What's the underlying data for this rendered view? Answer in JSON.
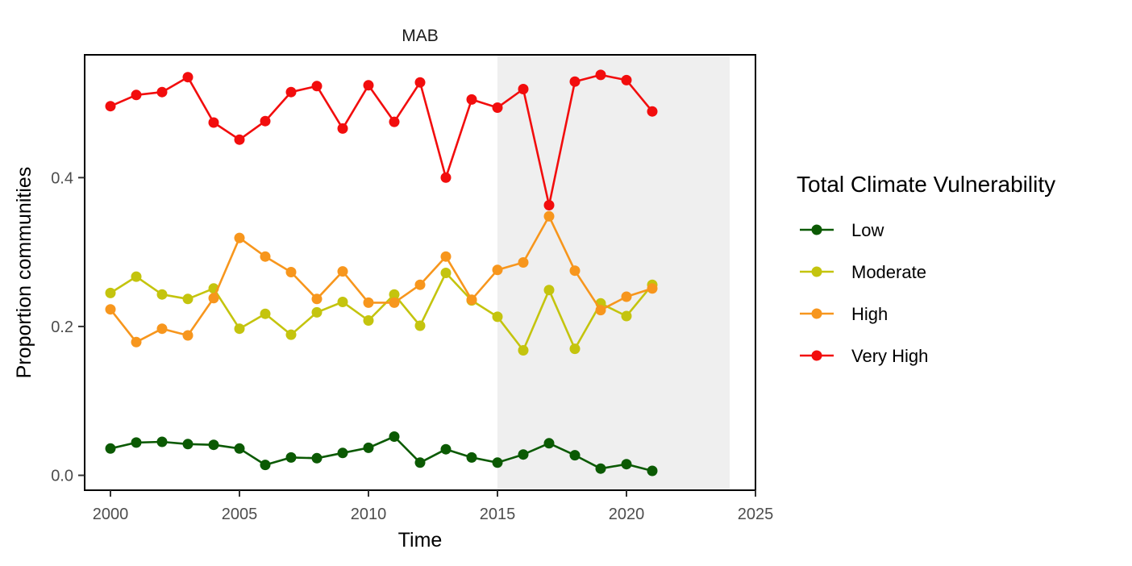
{
  "chart_data": {
    "type": "line",
    "title": "MAB",
    "xlabel": "Time",
    "ylabel": "Proportion communities",
    "xlim": [
      1999,
      2025
    ],
    "ylim": [
      -0.02,
      0.565
    ],
    "x_ticks": [
      2000,
      2005,
      2010,
      2015,
      2020,
      2025
    ],
    "y_ticks": [
      0.0,
      0.2,
      0.4
    ],
    "y_tick_labels": [
      "0.0",
      "0.2",
      "0.4"
    ],
    "shaded_region": {
      "x_start": 2015,
      "x_end": 2024,
      "color": "#efefef"
    },
    "grid": false,
    "legend": {
      "title": "Total Climate Vulnerability",
      "placement": "right"
    },
    "x": [
      2000,
      2001,
      2002,
      2003,
      2004,
      2005,
      2006,
      2007,
      2008,
      2009,
      2010,
      2011,
      2012,
      2013,
      2014,
      2015,
      2016,
      2017,
      2018,
      2019,
      2020,
      2021
    ],
    "series": [
      {
        "name": "Low",
        "color": "#0b5a03",
        "values": [
          0.036,
          0.044,
          0.045,
          0.042,
          0.041,
          0.036,
          0.014,
          0.024,
          0.023,
          0.03,
          0.037,
          0.052,
          0.017,
          0.035,
          0.024,
          0.017,
          0.028,
          0.043,
          0.027,
          0.009,
          0.015,
          0.006
        ]
      },
      {
        "name": "Moderate",
        "color": "#c4c40e",
        "values": [
          0.245,
          0.267,
          0.243,
          0.237,
          0.251,
          0.197,
          0.217,
          0.189,
          0.219,
          0.233,
          0.208,
          0.243,
          0.201,
          0.272,
          0.235,
          0.213,
          0.168,
          0.249,
          0.17,
          0.231,
          0.214,
          0.256
        ]
      },
      {
        "name": "High",
        "color": "#f7961d",
        "values": [
          0.223,
          0.179,
          0.197,
          0.188,
          0.238,
          0.319,
          0.294,
          0.273,
          0.237,
          0.274,
          0.232,
          0.232,
          0.256,
          0.294,
          0.236,
          0.276,
          0.286,
          0.348,
          0.275,
          0.222,
          0.24,
          0.251
        ]
      },
      {
        "name": "Very High",
        "color": "#f20d0d",
        "values": [
          0.496,
          0.511,
          0.515,
          0.535,
          0.474,
          0.451,
          0.476,
          0.515,
          0.523,
          0.466,
          0.524,
          0.475,
          0.528,
          0.4,
          0.505,
          0.494,
          0.519,
          0.363,
          0.529,
          0.538,
          0.531,
          0.489
        ]
      }
    ]
  }
}
